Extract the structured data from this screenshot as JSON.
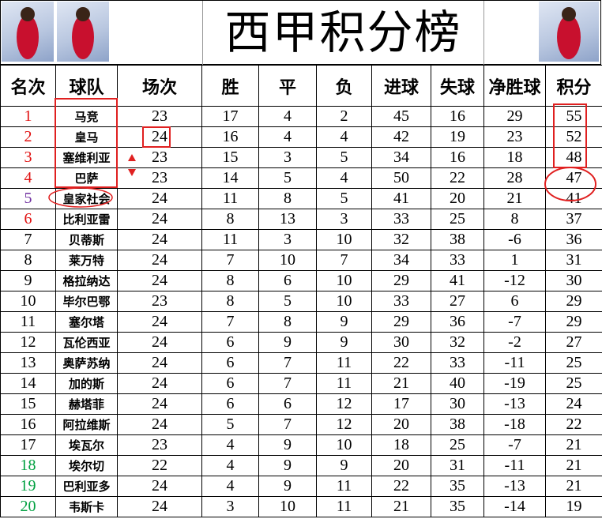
{
  "title": "西甲积分榜",
  "table": {
    "columns": [
      "名次",
      "球队",
      "场次",
      "胜",
      "平",
      "负",
      "进球",
      "失球",
      "净胜球",
      "积分"
    ],
    "rows": [
      [
        1,
        "马竞",
        23,
        17,
        4,
        2,
        45,
        16,
        29,
        55
      ],
      [
        2,
        "皇马",
        24,
        16,
        4,
        4,
        42,
        19,
        23,
        52
      ],
      [
        3,
        "塞维利亚",
        23,
        15,
        3,
        5,
        34,
        16,
        18,
        48
      ],
      [
        4,
        "巴萨",
        23,
        14,
        5,
        4,
        50,
        22,
        28,
        47
      ],
      [
        5,
        "皇家社会",
        24,
        11,
        8,
        5,
        41,
        20,
        21,
        41
      ],
      [
        6,
        "比利亚雷",
        24,
        8,
        13,
        3,
        33,
        25,
        8,
        37
      ],
      [
        7,
        "贝蒂斯",
        24,
        11,
        3,
        10,
        32,
        38,
        -6,
        36
      ],
      [
        8,
        "莱万特",
        24,
        7,
        10,
        7,
        34,
        33,
        1,
        31
      ],
      [
        9,
        "格拉纳达",
        24,
        8,
        6,
        10,
        29,
        41,
        -12,
        30
      ],
      [
        10,
        "毕尔巴鄂",
        23,
        8,
        5,
        10,
        33,
        27,
        6,
        29
      ],
      [
        11,
        "塞尔塔",
        24,
        7,
        8,
        9,
        29,
        36,
        -7,
        29
      ],
      [
        12,
        "瓦伦西亚",
        24,
        6,
        9,
        9,
        30,
        32,
        -2,
        27
      ],
      [
        13,
        "奥萨苏纳",
        24,
        6,
        7,
        11,
        22,
        33,
        -11,
        25
      ],
      [
        14,
        "加的斯",
        24,
        6,
        7,
        11,
        21,
        40,
        -19,
        25
      ],
      [
        15,
        "赫塔菲",
        24,
        6,
        6,
        12,
        17,
        30,
        -13,
        24
      ],
      [
        16,
        "阿拉维斯",
        24,
        5,
        7,
        12,
        20,
        38,
        -18,
        22
      ],
      [
        17,
        "埃瓦尔",
        23,
        4,
        9,
        10,
        18,
        25,
        -7,
        21
      ],
      [
        18,
        "埃尔切",
        22,
        4,
        9,
        9,
        20,
        31,
        -11,
        21
      ],
      [
        19,
        "巴利亚多",
        24,
        4,
        9,
        11,
        22,
        35,
        -13,
        21
      ],
      [
        20,
        "韦斯卡",
        24,
        3,
        10,
        11,
        21,
        35,
        -14,
        19
      ]
    ]
  }
}
